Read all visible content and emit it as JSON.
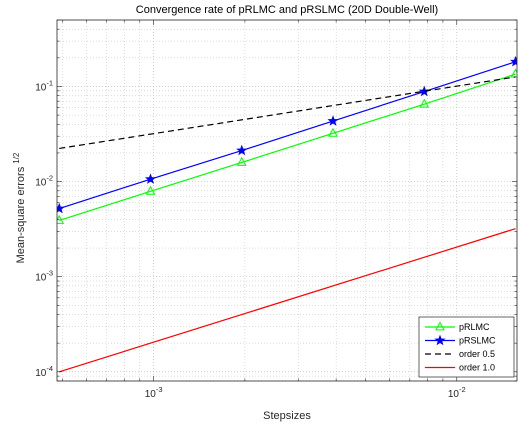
{
  "chart_data": {
    "type": "line",
    "title": "Convergence rate of pRLMC and pRSLMC (20D Double-Well)",
    "xlabel": "Stepsizes",
    "ylabel_main": "Mean-square errors",
    "ylabel_sup": "1/2",
    "x_scale": "log",
    "y_scale": "log",
    "xlim": [
      0.00048,
      0.0158
    ],
    "ylim": [
      8e-05,
      0.5
    ],
    "grid": true,
    "legend_position": "bottom-right",
    "x_ticks": [
      {
        "value": 0.001,
        "base": "10",
        "exp": "-3"
      },
      {
        "value": 0.01,
        "base": "10",
        "exp": "-2"
      }
    ],
    "y_ticks": [
      {
        "value": 0.0001,
        "base": "10",
        "exp": "-4"
      },
      {
        "value": 0.001,
        "base": "10",
        "exp": "-3"
      },
      {
        "value": 0.01,
        "base": "10",
        "exp": "-2"
      },
      {
        "value": 0.1,
        "base": "10",
        "exp": "-1"
      }
    ],
    "series": [
      {
        "name": "pRLMC",
        "color": "#00ff00",
        "marker": "triangle",
        "dash": "solid",
        "x": [
          0.00048828125,
          0.0009765625,
          0.001953125,
          0.00390625,
          0.0078125,
          0.015625
        ],
        "y": [
          0.0039,
          0.0079,
          0.0159,
          0.0322,
          0.0652,
          0.135
        ]
      },
      {
        "name": "pRSLMC",
        "color": "#0000ff",
        "marker": "star",
        "dash": "solid",
        "x": [
          0.00048828125,
          0.0009765625,
          0.001953125,
          0.00390625,
          0.0078125,
          0.015625
        ],
        "y": [
          0.0052,
          0.0106,
          0.0212,
          0.0433,
          0.0885,
          0.182
        ]
      },
      {
        "name": "order 0.5",
        "color": "#000000",
        "marker": "none",
        "dash": "dashed",
        "x": [
          0.00048828125,
          0.015625
        ],
        "y": [
          0.0223,
          0.126
        ]
      },
      {
        "name": "order 1.0",
        "color": "#ff0000",
        "marker": "none",
        "dash": "solid",
        "x": [
          0.00048828125,
          0.015625
        ],
        "y": [
          0.0001,
          0.0032
        ]
      }
    ]
  }
}
